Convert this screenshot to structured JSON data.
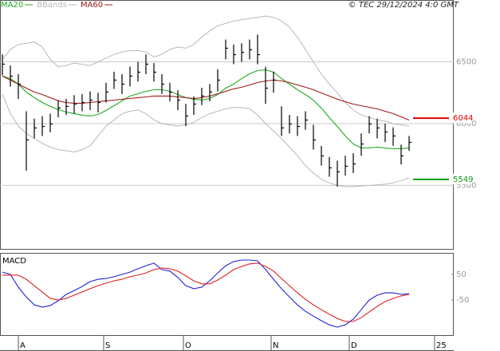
{
  "chart_data": [
    {
      "type": "ohlc",
      "title": "© TEC 29/12/2024 4:0 GMT",
      "x": [
        0,
        1,
        2,
        3,
        4,
        5,
        6,
        7,
        8,
        9,
        10,
        11,
        12,
        13,
        14,
        15,
        16,
        17,
        18,
        19,
        20,
        21,
        22,
        23,
        24,
        25,
        26,
        27,
        28,
        29,
        30,
        31,
        32,
        33,
        34,
        35,
        36,
        37,
        38,
        39,
        40,
        41,
        42,
        43,
        44,
        45,
        46,
        47,
        48,
        49,
        50,
        51
      ],
      "xlim": [
        -0.3,
        56.6
      ],
      "ylim": [
        4980,
        7000
      ],
      "yticks": [
        5500,
        6000,
        6500
      ],
      "grid": true,
      "color": "#000000",
      "high": [
        6560,
        6470,
        6400,
        6100,
        6040,
        6060,
        6080,
        6190,
        6200,
        6230,
        6240,
        6260,
        6250,
        6330,
        6420,
        6400,
        6460,
        6500,
        6560,
        6490,
        6400,
        6330,
        6270,
        6160,
        6220,
        6290,
        6320,
        6440,
        6680,
        6640,
        6650,
        6680,
        6720,
        6460,
        6420,
        6140,
        6070,
        6060,
        6100,
        5990,
        5820,
        5730,
        5700,
        5740,
        5760,
        5920,
        6060,
        6040,
        6000,
        5970,
        5830,
        5900
      ],
      "low": [
        6390,
        6300,
        6200,
        5620,
        5880,
        5900,
        5930,
        6050,
        6070,
        6080,
        6100,
        6110,
        6090,
        6170,
        6280,
        6240,
        6300,
        6340,
        6400,
        6340,
        6240,
        6180,
        6110,
        5980,
        6070,
        6150,
        6180,
        6260,
        6520,
        6480,
        6500,
        6520,
        6480,
        6160,
        6250,
        5900,
        5920,
        5900,
        5950,
        5790,
        5660,
        5570,
        5490,
        5580,
        5600,
        5740,
        5920,
        5880,
        5850,
        5820,
        5670,
        5780
      ],
      "close": [
        6481,
        6384,
        6319,
        5868,
        5965,
        5977,
        5997,
        6126,
        6139,
        6158,
        6171,
        6190,
        6171,
        6255,
        6352,
        6319,
        6384,
        6416,
        6481,
        6416,
        6319,
        6255,
        6190,
        6061,
        6158,
        6223,
        6255,
        6352,
        6610,
        6558,
        6577,
        6597,
        6558,
        6287,
        6352,
        5965,
        5997,
        5977,
        6029,
        5868,
        5739,
        5642,
        5610,
        5655,
        5674,
        5835,
        5997,
        5965,
        5932,
        5900,
        5739,
        5848
      ],
      "series": [
        {
          "name": "MA20",
          "color": "#1faa1f",
          "values": [
            6384,
            6365,
            6319,
            6255,
            6210,
            6171,
            6139,
            6113,
            6094,
            6081,
            6068,
            6061,
            6074,
            6106,
            6145,
            6184,
            6223,
            6242,
            6261,
            6274,
            6274,
            6261,
            6235,
            6210,
            6197,
            6190,
            6203,
            6235,
            6287,
            6319,
            6365,
            6403,
            6429,
            6435,
            6416,
            6365,
            6319,
            6274,
            6235,
            6190,
            6126,
            6048,
            5977,
            5900,
            5835,
            5803,
            5803,
            5810,
            5803,
            5797,
            5797,
            5803
          ]
        },
        {
          "name": "BBands",
          "color": "#b8b8b8",
          "upper": [
            6520,
            6600,
            6640,
            6650,
            6660,
            6620,
            6520,
            6460,
            6470,
            6490,
            6480,
            6470,
            6500,
            6530,
            6560,
            6580,
            6590,
            6590,
            6580,
            6540,
            6560,
            6600,
            6620,
            6610,
            6640,
            6700,
            6750,
            6790,
            6810,
            6830,
            6840,
            6850,
            6860,
            6870,
            6860,
            6830,
            6780,
            6700,
            6600,
            6500,
            6400,
            6320,
            6250,
            6170,
            6110,
            6070,
            6050,
            6030,
            6020,
            6000,
            5990,
            5980
          ],
          "lower": [
            6240,
            6080,
            5980,
            5920,
            5880,
            5840,
            5810,
            5790,
            5780,
            5770,
            5790,
            5820,
            5900,
            5980,
            6030,
            6080,
            6100,
            6110,
            6080,
            6030,
            6000,
            5990,
            5980,
            5990,
            6010,
            6050,
            6080,
            6100,
            6120,
            6130,
            6130,
            6120,
            6070,
            6000,
            5940,
            5880,
            5810,
            5740,
            5660,
            5600,
            5550,
            5520,
            5500,
            5490,
            5490,
            5495,
            5500,
            5505,
            5510,
            5520,
            5540,
            5560
          ]
        },
        {
          "name": "MA60",
          "color": "#a01818",
          "values": [
            6384,
            6352,
            6319,
            6287,
            6255,
            6235,
            6210,
            6184,
            6171,
            6165,
            6165,
            6171,
            6177,
            6184,
            6190,
            6197,
            6203,
            6210,
            6216,
            6223,
            6223,
            6223,
            6216,
            6210,
            6203,
            6210,
            6223,
            6242,
            6261,
            6281,
            6294,
            6313,
            6332,
            6345,
            6352,
            6345,
            6332,
            6313,
            6294,
            6274,
            6248,
            6223,
            6197,
            6177,
            6158,
            6145,
            6132,
            6119,
            6100,
            6081,
            6055,
            6029
          ]
        }
      ],
      "levels": [
        {
          "value": 6044,
          "color": "#dd0000"
        },
        {
          "value": 5549,
          "color": "#109910"
        }
      ]
    },
    {
      "type": "line",
      "title": "MACD",
      "x": [
        0,
        1,
        2,
        3,
        4,
        5,
        6,
        7,
        8,
        9,
        10,
        11,
        12,
        13,
        14,
        15,
        16,
        17,
        18,
        19,
        20,
        21,
        22,
        23,
        24,
        25,
        26,
        27,
        28,
        29,
        30,
        31,
        32,
        33,
        34,
        35,
        36,
        37,
        38,
        39,
        40,
        41,
        42,
        43,
        44,
        45,
        46,
        47,
        48,
        49,
        50,
        51
      ],
      "xlim": [
        -0.3,
        56.6
      ],
      "ylim": [
        -187,
        131
      ],
      "yticks": [
        50,
        -50
      ],
      "xticks": [
        {
          "value": 2,
          "label": "A"
        },
        {
          "value": 12.7,
          "label": "S"
        },
        {
          "value": 22.7,
          "label": "O"
        },
        {
          "value": 33.7,
          "label": "N"
        },
        {
          "value": 43.5,
          "label": "D"
        },
        {
          "value": 54.2,
          "label": "25"
        }
      ],
      "series": [
        {
          "color": "#2222dd",
          "values": [
            59,
            50,
            0,
            -38,
            -69,
            -78,
            -72,
            -53,
            -28,
            -13,
            3,
            22,
            31,
            34,
            41,
            50,
            59,
            72,
            84,
            94,
            69,
            63,
            38,
            6,
            -6,
            0,
            25,
            56,
            84,
            100,
            106,
            106,
            103,
            69,
            31,
            -6,
            -38,
            -69,
            -94,
            -113,
            -131,
            -147,
            -156,
            -147,
            -125,
            -88,
            -50,
            -31,
            -22,
            -22,
            -28,
            -25
          ]
        },
        {
          "color": "#dd2222",
          "values": [
            47,
            47,
            47,
            31,
            6,
            -19,
            -44,
            -50,
            -44,
            -31,
            -19,
            -6,
            6,
            16,
            25,
            31,
            41,
            47,
            56,
            69,
            75,
            72,
            63,
            44,
            25,
            13,
            13,
            28,
            47,
            69,
            81,
            91,
            94,
            81,
            63,
            34,
            6,
            -22,
            -47,
            -69,
            -88,
            -106,
            -122,
            -134,
            -134,
            -119,
            -97,
            -75,
            -56,
            -44,
            -34,
            -28
          ]
        }
      ]
    }
  ]
}
